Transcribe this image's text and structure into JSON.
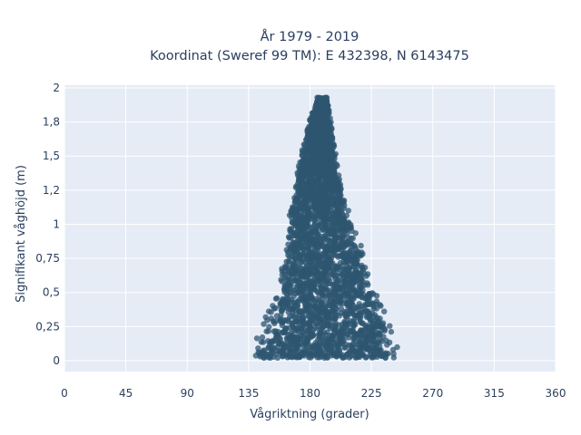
{
  "chart_data": {
    "type": "scatter",
    "title_line1": "År 1979 - 2019",
    "title_line2": "Koordinat (Sweref 99 TM): E 432398, N 6143475",
    "xlabel": "Vågriktning (grader)",
    "ylabel": "Signifikant våghöjd (m)",
    "xlim": [
      0,
      360
    ],
    "ylim": [
      -0.08,
      2.02
    ],
    "x_ticks": [
      0,
      45,
      90,
      135,
      180,
      225,
      270,
      315,
      360
    ],
    "x_tick_labels": [
      "0",
      "45",
      "90",
      "135",
      "180",
      "225",
      "270",
      "315",
      "360"
    ],
    "y_ticks": [
      0,
      0.25,
      0.5,
      0.75,
      1,
      1.25,
      1.5,
      1.75,
      2
    ],
    "y_tick_labels": [
      "0",
      "0,25",
      "0,5",
      "0,75",
      "1",
      "1,2",
      "1,5",
      "1,8",
      "2"
    ],
    "grid": true,
    "marker_color": "#2e5570",
    "plot_background": "#e5ecf6",
    "envelope": [
      {
        "y": 0.0,
        "x_min": 133,
        "x_max": 249
      },
      {
        "y": 0.25,
        "x_min": 143,
        "x_max": 242
      },
      {
        "y": 0.5,
        "x_min": 152,
        "x_max": 230
      },
      {
        "y": 0.75,
        "x_min": 160,
        "x_max": 222
      },
      {
        "y": 1.0,
        "x_min": 164,
        "x_max": 212
      },
      {
        "y": 1.25,
        "x_min": 167,
        "x_max": 205
      },
      {
        "y": 1.5,
        "x_min": 172,
        "x_max": 200
      },
      {
        "y": 1.75,
        "x_min": 179,
        "x_max": 196
      },
      {
        "y": 1.93,
        "x_min": 185,
        "x_max": 193
      }
    ]
  }
}
